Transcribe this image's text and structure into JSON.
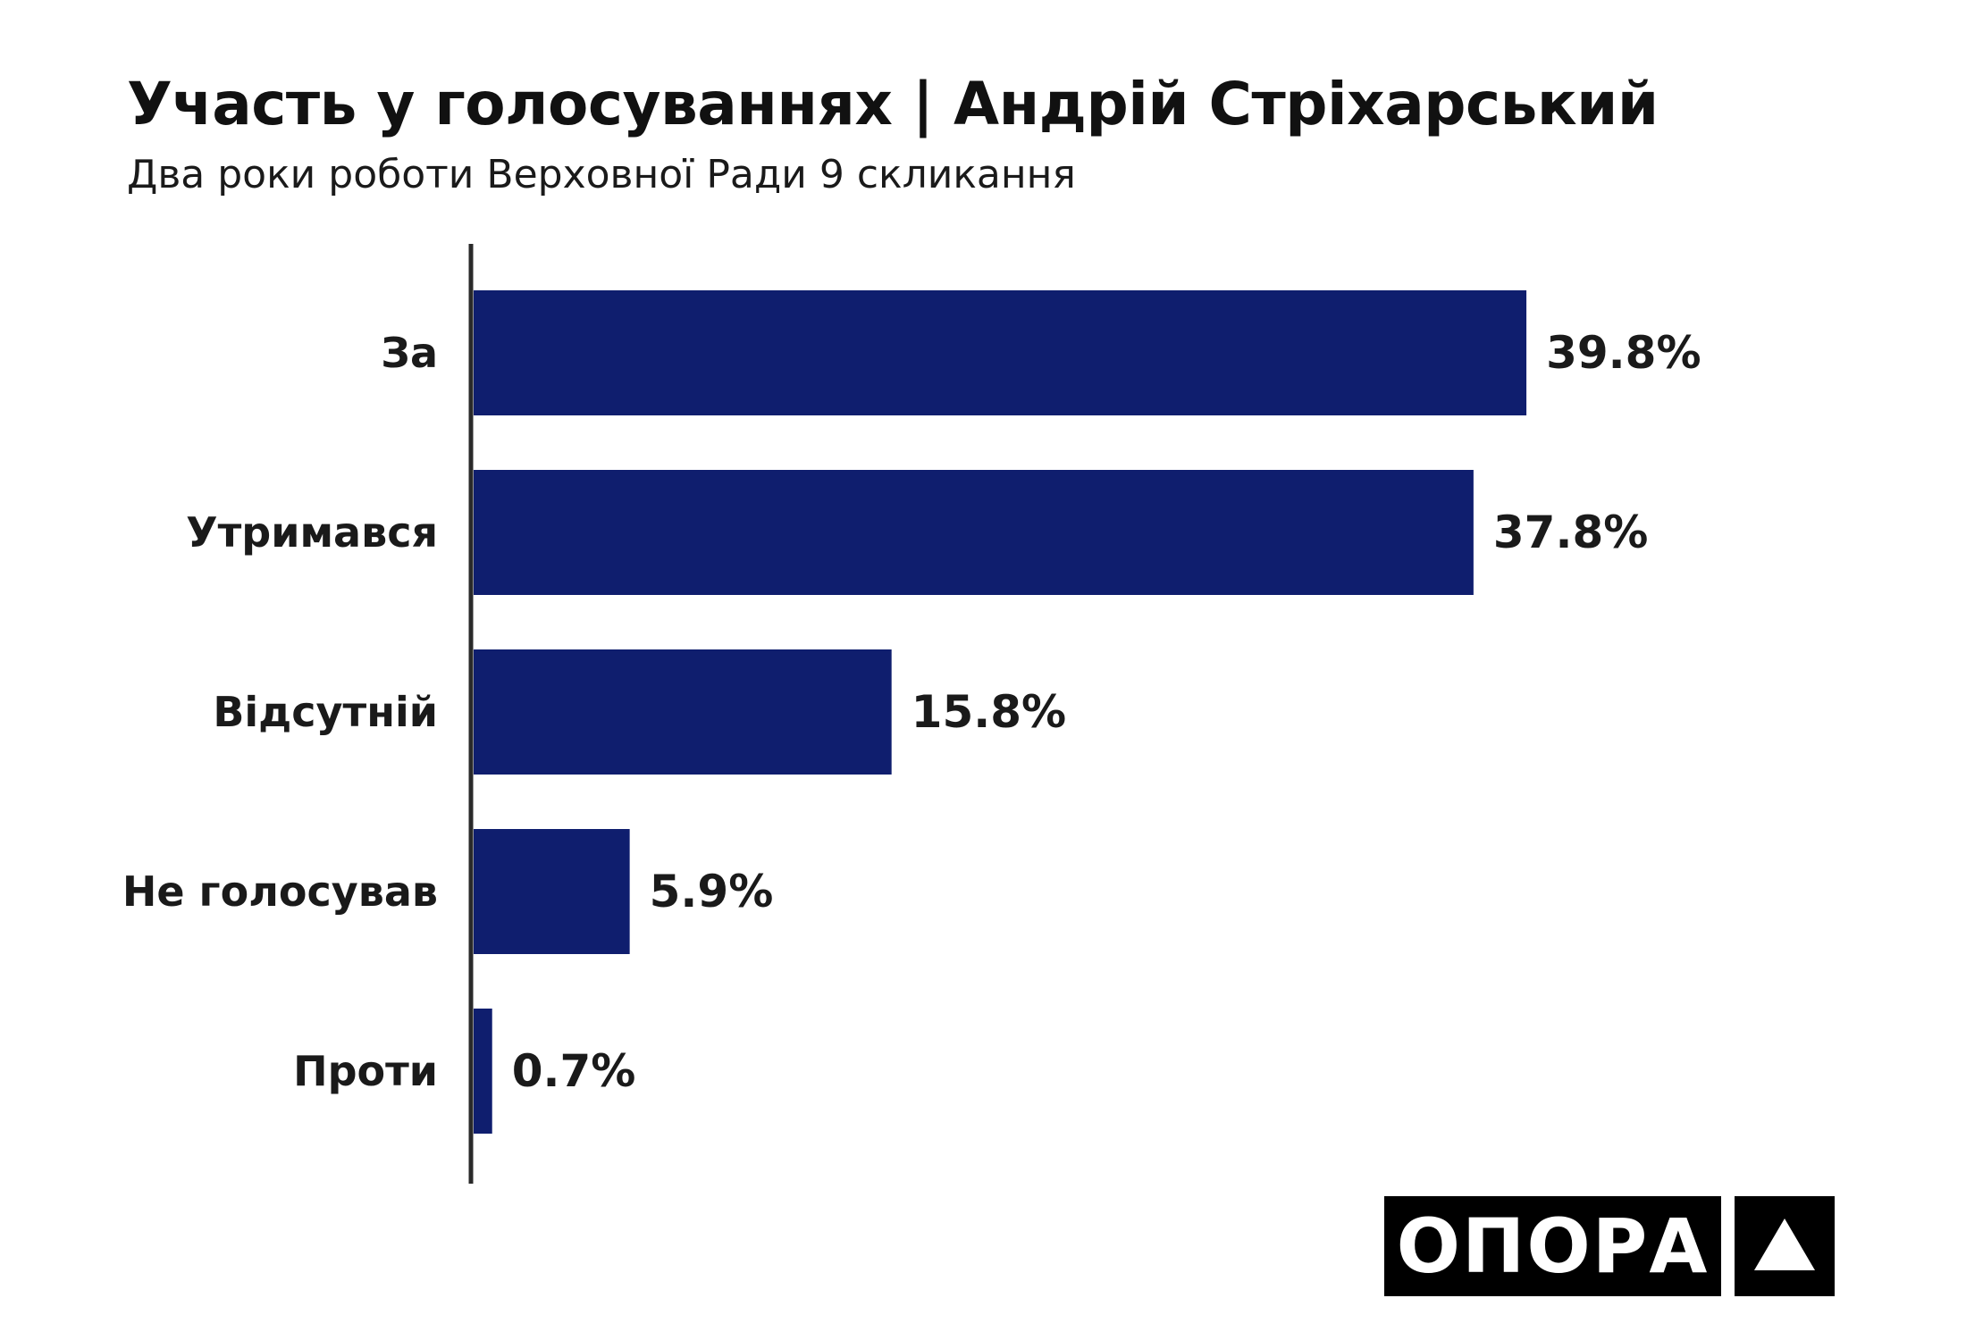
{
  "header": {
    "title": "Участь у голосуваннях | Андрій Стріхарський",
    "subtitle": "Два роки роботи Верховної Ради 9 скликання"
  },
  "chart_data": {
    "type": "bar",
    "orientation": "horizontal",
    "title": "Участь у голосуваннях | Андрій Стріхарський",
    "subtitle": "Два роки роботи Верховної Ради 9 скликання",
    "categories": [
      "За",
      "Утримався",
      "Відсутній",
      "Не голосував",
      "Проти"
    ],
    "values": [
      39.8,
      37.8,
      15.8,
      5.9,
      0.7
    ],
    "value_labels": [
      "39.8%",
      "37.8%",
      "15.8%",
      "5.9%",
      "0.7%"
    ],
    "xlim": [
      0,
      40
    ],
    "grid": false,
    "bar_color": "#0f1e6e"
  },
  "logo": {
    "text": "ОПОРА",
    "icon": "triangle-icon",
    "color": "#000000"
  }
}
